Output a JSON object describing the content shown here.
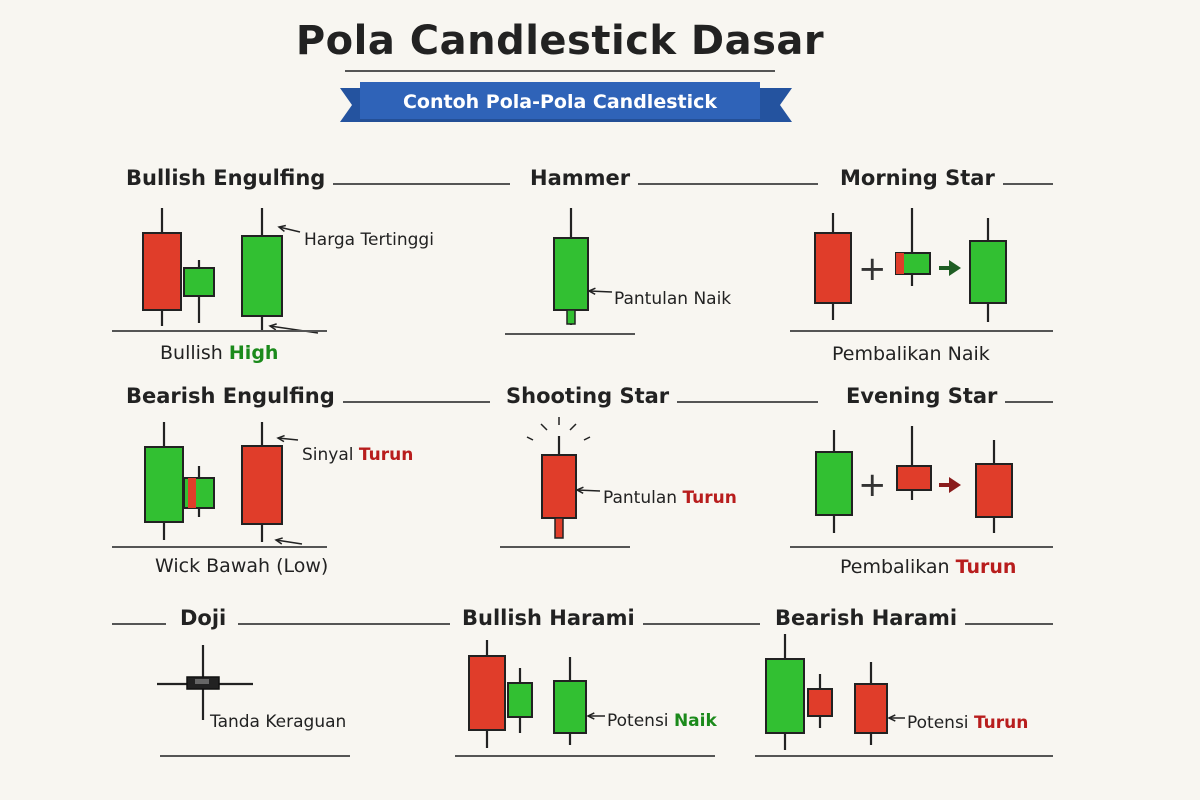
{
  "header": {
    "title": "Pola Candlestick Dasar",
    "banner": "Contoh Pola-Pola Candlestick"
  },
  "colors": {
    "bull": "#32c032",
    "bear": "#e03d2a",
    "banner": "#2f63b8",
    "bull_text": "#1b8a1b",
    "bear_text": "#b81d1d"
  },
  "patterns": {
    "bullish_engulfing": {
      "title": "Bullish Engulfing",
      "note_top": "Harga Tertinggi",
      "caption_a": "Bullish",
      "caption_b": "High"
    },
    "hammer": {
      "title": "Hammer",
      "note": "Pantulan Naik"
    },
    "morning_star": {
      "title": "Morning Star",
      "plus": "+",
      "caption": "Pembalikan Naik"
    },
    "bearish_engulfing": {
      "title": "Bearish Engulfing",
      "note_a": "Sinyal",
      "note_b": "Turun",
      "caption": "Wick Bawah (Low)"
    },
    "shooting_star": {
      "title": "Shooting Star",
      "note_a": "Pantulan",
      "note_b": "Turun"
    },
    "evening_star": {
      "title": "Evening Star",
      "plus": "+",
      "caption_a": "Pembalikan",
      "caption_b": "Turun"
    },
    "doji": {
      "title": "Doji",
      "note": "Tanda Keraguan"
    },
    "bullish_harami": {
      "title": "Bullish Harami",
      "note_a": "Potensi",
      "note_b": "Naik"
    },
    "bearish_harami": {
      "title": "Bearish Harami",
      "note_a": "Potensi",
      "note_b": "Turun"
    }
  }
}
